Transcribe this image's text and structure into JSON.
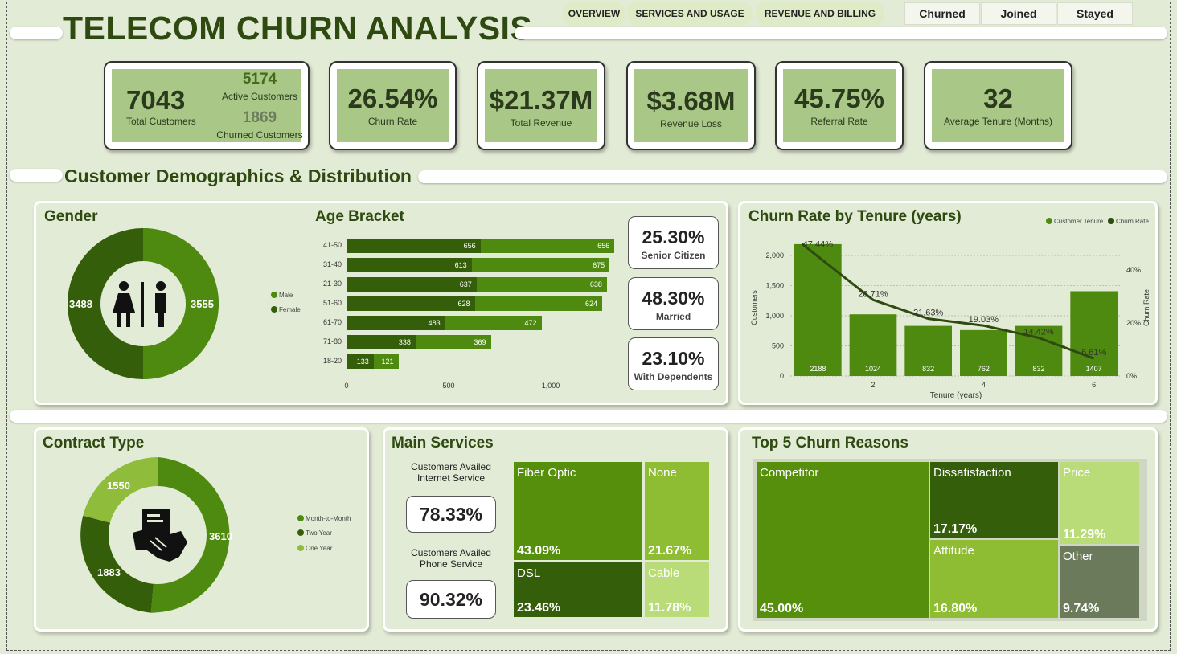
{
  "header": {
    "title": "TELECOM CHURN ANALYSIS",
    "tabs": [
      "OVERVIEW",
      "SERVICES AND USAGE",
      "REVENUE AND BILLING"
    ],
    "filters": [
      "Churned",
      "Joined",
      "Stayed"
    ]
  },
  "kpis": {
    "total_customers": {
      "value": "7043",
      "label": "Total Customers"
    },
    "active_customers": {
      "value": "5174",
      "label": "Active Customers"
    },
    "churned_customers": {
      "value": "1869",
      "label": "Churned Customers"
    },
    "churn_rate": {
      "value": "26.54%",
      "label": "Churn Rate"
    },
    "total_revenue": {
      "value": "$21.37M",
      "label": "Total Revenue"
    },
    "revenue_loss": {
      "value": "$3.68M",
      "label": "Revenue Loss"
    },
    "referral_rate": {
      "value": "45.75%",
      "label": "Referral Rate"
    },
    "avg_tenure": {
      "value": "32",
      "label": "Average Tenure (Months)"
    }
  },
  "section_title": "Customer Demographics & Distribution",
  "gender": {
    "title": "Gender",
    "male": "3555",
    "female": "3488",
    "legend": [
      "Male",
      "Female"
    ],
    "colors": {
      "male": "#4f8a10",
      "female": "#355e0b"
    }
  },
  "age": {
    "title": "Age Bracket",
    "rows": [
      {
        "label": "41-50",
        "a": 656,
        "b": 656
      },
      {
        "label": "31-40",
        "a": 613,
        "b": 675
      },
      {
        "label": "21-30",
        "a": 637,
        "b": 638
      },
      {
        "label": "51-60",
        "a": 628,
        "b": 624
      },
      {
        "label": "61-70",
        "a": 483,
        "b": 472
      },
      {
        "label": "71-80",
        "a": 338,
        "b": 369
      },
      {
        "label": "18-20",
        "a": 133,
        "b": 121
      }
    ],
    "ticks": [
      "0",
      "500",
      "1,000"
    ]
  },
  "stats": [
    {
      "value": "25.30%",
      "label": "Senior Citizen"
    },
    {
      "value": "48.30%",
      "label": "Married"
    },
    {
      "value": "23.10%",
      "label": "With Dependents"
    }
  ],
  "tenure": {
    "title": "Churn Rate by Tenure (years)",
    "legend": [
      "Customer Tenure",
      "Churn Rate"
    ],
    "y_ticks": [
      "2,000",
      "1,500",
      "1,000",
      "500",
      "0"
    ],
    "y2_ticks": [
      "40%",
      "20%",
      "0%"
    ],
    "x_ticks": [
      "2",
      "4",
      "6"
    ],
    "ylabel": "Customers",
    "y2label": "Churn Rate",
    "xlabel": "Tenure (years)"
  },
  "chart_data": {
    "type": "bar",
    "title": "Churn Rate by Tenure (years)",
    "xlabel": "Tenure (years)",
    "ylabel": "Customers",
    "y2label": "Churn Rate",
    "x": [
      1,
      2,
      3,
      4,
      5,
      6
    ],
    "ylim": [
      0,
      2200
    ],
    "y2lim": [
      0,
      50
    ],
    "series": [
      {
        "name": "Customer Tenure",
        "type": "bar",
        "values": [
          2188,
          1024,
          832,
          762,
          832,
          1407
        ]
      },
      {
        "name": "Churn Rate",
        "type": "line",
        "values": [
          47.44,
          28.71,
          21.63,
          19.03,
          14.42,
          6.61
        ],
        "labels": [
          "47.44%",
          "28.71%",
          "21.63%",
          "19.03%",
          "14.42%",
          "6.61%"
        ]
      }
    ]
  },
  "contract": {
    "title": "Contract Type",
    "values": {
      "month": "3610",
      "two": "1883",
      "one": "1550"
    },
    "legend": [
      "Month-to-Month",
      "Two Year",
      "One Year"
    ]
  },
  "services": {
    "title": "Main Services",
    "internet_label": "Customers Availed Internet Service",
    "internet_value": "78.33%",
    "phone_label": "Customers Availed Phone Service",
    "phone_value": "90.32%",
    "cells": [
      {
        "name": "Fiber Optic",
        "pct": "43.09%"
      },
      {
        "name": "None",
        "pct": "21.67%"
      },
      {
        "name": "DSL",
        "pct": "23.46%"
      },
      {
        "name": "Cable",
        "pct": "11.78%"
      }
    ]
  },
  "reasons": {
    "title": "Top 5 Churn Reasons",
    "cells": [
      {
        "name": "Competitor",
        "pct": "45.00%"
      },
      {
        "name": "Dissatisfaction",
        "pct": "17.17%"
      },
      {
        "name": "Price",
        "pct": "11.29%"
      },
      {
        "name": "Attitude",
        "pct": "16.80%"
      },
      {
        "name": "Other",
        "pct": "9.74%"
      }
    ]
  }
}
